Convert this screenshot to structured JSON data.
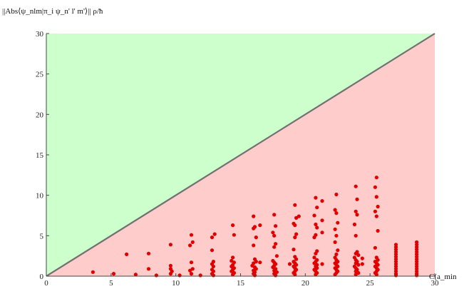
{
  "chart_data": {
    "type": "scatter",
    "xlabel": "C(a_min",
    "ylabel": "||Abs⟨ψ_nlm|π_i ψ_n' l' m'⟩|| ρ/ħ",
    "xlim": [
      0,
      30
    ],
    "ylim": [
      0,
      30
    ],
    "xticks": [
      "0",
      "5",
      "10",
      "15",
      "20",
      "25",
      "30"
    ],
    "yticks": [
      "0",
      "5",
      "10",
      "15",
      "20",
      "25",
      "30"
    ],
    "grid": false,
    "regions": {
      "above_line_color": "#ccffcc",
      "below_line_color": "#ffcccc"
    },
    "line": {
      "x": [
        0,
        30
      ],
      "y": [
        0,
        30
      ],
      "color": "#707070"
    },
    "point_color": "#e00000",
    "points": [
      [
        3.6,
        0.5
      ],
      [
        5.2,
        0.3
      ],
      [
        6.2,
        2.7
      ],
      [
        6.9,
        0.2
      ],
      [
        7.9,
        2.8
      ],
      [
        7.9,
        0.9
      ],
      [
        8.5,
        0.1
      ],
      [
        9.6,
        3.9
      ],
      [
        9.6,
        1.3
      ],
      [
        9.6,
        0.9
      ],
      [
        9.7,
        0.6
      ],
      [
        9.6,
        0.3
      ],
      [
        10.3,
        0.1
      ],
      [
        11.2,
        5.1
      ],
      [
        11.3,
        4.2
      ],
      [
        11.1,
        3.8
      ],
      [
        11.2,
        1.7
      ],
      [
        11.3,
        0.9
      ],
      [
        11.1,
        0.7
      ],
      [
        11.2,
        0.3
      ],
      [
        11.9,
        0.1
      ],
      [
        12.8,
        4.8
      ],
      [
        13.0,
        5.2
      ],
      [
        12.8,
        3.2
      ],
      [
        12.9,
        1.8
      ],
      [
        12.8,
        1.5
      ],
      [
        12.9,
        1.2
      ],
      [
        12.8,
        0.8
      ],
      [
        12.9,
        0.6
      ],
      [
        12.8,
        0.3
      ],
      [
        12.9,
        0.1
      ],
      [
        14.4,
        6.3
      ],
      [
        14.5,
        5.1
      ],
      [
        14.4,
        2.3
      ],
      [
        14.3,
        1.9
      ],
      [
        14.5,
        1.7
      ],
      [
        14.4,
        1.4
      ],
      [
        14.3,
        1.2
      ],
      [
        14.5,
        1.0
      ],
      [
        14.4,
        0.8
      ],
      [
        14.3,
        0.6
      ],
      [
        14.5,
        0.4
      ],
      [
        14.4,
        0.2
      ],
      [
        16.0,
        7.4
      ],
      [
        16.1,
        6.1
      ],
      [
        16.0,
        5.9
      ],
      [
        16.2,
        4.8
      ],
      [
        16.0,
        3.8
      ],
      [
        16.1,
        2.1
      ],
      [
        16.2,
        1.8
      ],
      [
        16.0,
        1.6
      ],
      [
        15.9,
        1.3
      ],
      [
        16.1,
        1.1
      ],
      [
        16.2,
        0.9
      ],
      [
        16.0,
        0.7
      ],
      [
        16.1,
        0.5
      ],
      [
        16.0,
        0.3
      ],
      [
        16.1,
        0.1
      ],
      [
        16.5,
        6.3
      ],
      [
        16.5,
        1.7
      ],
      [
        17.6,
        7.6
      ],
      [
        17.7,
        6.2
      ],
      [
        17.5,
        5.4
      ],
      [
        17.6,
        5.0
      ],
      [
        17.7,
        4.0
      ],
      [
        17.6,
        3.6
      ],
      [
        17.8,
        2.5
      ],
      [
        17.5,
        1.9
      ],
      [
        17.6,
        1.7
      ],
      [
        17.7,
        1.5
      ],
      [
        17.6,
        1.3
      ],
      [
        17.5,
        1.1
      ],
      [
        17.7,
        0.9
      ],
      [
        17.6,
        0.7
      ],
      [
        17.8,
        0.5
      ],
      [
        17.6,
        0.3
      ],
      [
        17.7,
        0.1
      ],
      [
        19.2,
        8.8
      ],
      [
        19.3,
        7.2
      ],
      [
        19.1,
        6.5
      ],
      [
        19.2,
        6.3
      ],
      [
        19.3,
        5.2
      ],
      [
        19.2,
        4.8
      ],
      [
        19.1,
        3.3
      ],
      [
        19.2,
        2.4
      ],
      [
        19.3,
        2.1
      ],
      [
        19.1,
        1.8
      ],
      [
        19.2,
        1.6
      ],
      [
        19.3,
        1.4
      ],
      [
        19.1,
        1.2
      ],
      [
        19.2,
        1.0
      ],
      [
        19.3,
        0.8
      ],
      [
        19.2,
        0.6
      ],
      [
        19.1,
        0.4
      ],
      [
        19.2,
        0.2
      ],
      [
        18.8,
        1.5
      ],
      [
        19.5,
        7.4
      ],
      [
        20.8,
        9.7
      ],
      [
        20.9,
        8.5
      ],
      [
        20.7,
        7.5
      ],
      [
        20.8,
        6.4
      ],
      [
        20.9,
        6.0
      ],
      [
        20.8,
        5.1
      ],
      [
        20.7,
        4.8
      ],
      [
        20.9,
        3.1
      ],
      [
        20.8,
        2.8
      ],
      [
        20.7,
        2.3
      ],
      [
        20.9,
        2.0
      ],
      [
        20.8,
        1.8
      ],
      [
        20.7,
        1.6
      ],
      [
        20.9,
        1.4
      ],
      [
        20.8,
        1.2
      ],
      [
        20.9,
        1.0
      ],
      [
        20.7,
        0.8
      ],
      [
        20.8,
        0.6
      ],
      [
        20.9,
        0.4
      ],
      [
        20.8,
        0.2
      ],
      [
        21.3,
        9.3
      ],
      [
        21.3,
        6.9
      ],
      [
        21.3,
        5.4
      ],
      [
        21.3,
        1.5
      ],
      [
        22.4,
        10.1
      ],
      [
        22.3,
        8.2
      ],
      [
        22.4,
        7.8
      ],
      [
        22.5,
        6.6
      ],
      [
        22.3,
        5.8
      ],
      [
        22.4,
        5.0
      ],
      [
        22.3,
        4.2
      ],
      [
        22.5,
        3.2
      ],
      [
        22.4,
        2.7
      ],
      [
        22.3,
        2.3
      ],
      [
        22.4,
        2.0
      ],
      [
        22.5,
        1.8
      ],
      [
        22.3,
        1.6
      ],
      [
        22.4,
        1.4
      ],
      [
        22.5,
        1.2
      ],
      [
        22.3,
        1.0
      ],
      [
        22.4,
        0.8
      ],
      [
        22.5,
        0.6
      ],
      [
        22.4,
        0.4
      ],
      [
        22.3,
        0.2
      ],
      [
        23.9,
        11.1
      ],
      [
        24.0,
        9.5
      ],
      [
        23.9,
        8.0
      ],
      [
        24.0,
        7.6
      ],
      [
        23.8,
        6.4
      ],
      [
        23.9,
        5.0
      ],
      [
        24.0,
        3.0
      ],
      [
        23.9,
        2.8
      ],
      [
        24.1,
        2.6
      ],
      [
        23.8,
        2.3
      ],
      [
        23.9,
        2.0
      ],
      [
        24.0,
        1.8
      ],
      [
        23.9,
        1.6
      ],
      [
        24.1,
        1.4
      ],
      [
        23.8,
        1.2
      ],
      [
        23.9,
        1.0
      ],
      [
        24.0,
        0.8
      ],
      [
        23.9,
        0.6
      ],
      [
        24.1,
        0.4
      ],
      [
        23.9,
        0.2
      ],
      [
        24.4,
        2.2
      ],
      [
        24.4,
        1.5
      ],
      [
        25.5,
        12.2
      ],
      [
        25.4,
        11.0
      ],
      [
        25.5,
        9.8
      ],
      [
        25.6,
        8.6
      ],
      [
        25.4,
        8.0
      ],
      [
        25.5,
        7.4
      ],
      [
        25.6,
        5.6
      ],
      [
        25.4,
        3.5
      ],
      [
        25.5,
        2.3
      ],
      [
        25.6,
        2.0
      ],
      [
        25.4,
        1.8
      ],
      [
        25.5,
        1.6
      ],
      [
        25.6,
        1.4
      ],
      [
        25.4,
        1.2
      ],
      [
        25.5,
        1.0
      ],
      [
        25.6,
        0.8
      ],
      [
        25.5,
        0.6
      ],
      [
        25.4,
        0.4
      ],
      [
        25.5,
        0.2
      ],
      [
        27.0,
        3.9
      ],
      [
        27.0,
        3.6
      ],
      [
        27.0,
        3.3
      ],
      [
        27.0,
        3.0
      ],
      [
        27.0,
        2.7
      ],
      [
        27.0,
        2.4
      ],
      [
        27.0,
        2.1
      ],
      [
        27.0,
        1.8
      ],
      [
        27.0,
        1.5
      ],
      [
        27.0,
        1.2
      ],
      [
        27.0,
        0.9
      ],
      [
        27.0,
        0.6
      ],
      [
        27.0,
        0.3
      ],
      [
        27.0,
        0.1
      ],
      [
        28.6,
        4.2
      ],
      [
        28.6,
        3.9
      ],
      [
        28.6,
        3.6
      ],
      [
        28.6,
        3.3
      ],
      [
        28.6,
        3.0
      ],
      [
        28.6,
        2.7
      ],
      [
        28.6,
        2.4
      ],
      [
        28.6,
        2.1
      ],
      [
        28.6,
        1.8
      ],
      [
        28.6,
        1.5
      ],
      [
        28.6,
        1.2
      ],
      [
        28.6,
        0.9
      ],
      [
        28.6,
        0.6
      ],
      [
        28.6,
        0.3
      ],
      [
        28.6,
        0.1
      ]
    ]
  }
}
